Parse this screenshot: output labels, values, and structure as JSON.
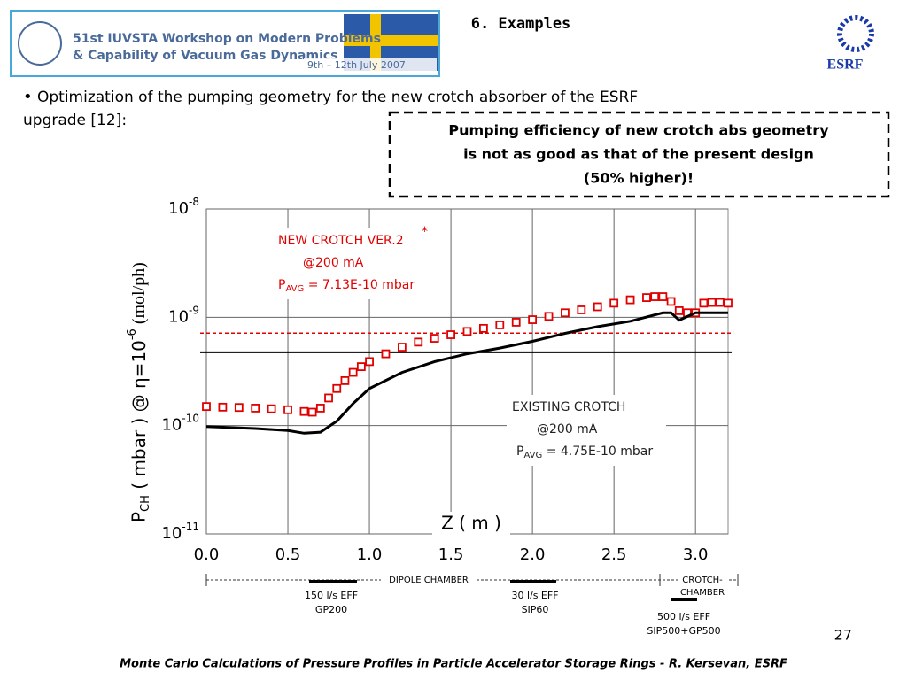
{
  "header": {
    "logo_line1": "51st IUVSTA Workshop on Modern Problems",
    "logo_line2": "& Capability of Vacuum Gas Dynamics",
    "logo_date": "9th – 12th  July 2007",
    "title": "6. Examples",
    "esrf": "ESRF"
  },
  "bullet": {
    "line1": "Optimization of the pumping geometry for the new crotch absorber of the ESRF",
    "line2": "upgrade [12]:"
  },
  "callout": {
    "lines": [
      "Pumping efficiency of new crotch abs geometry",
      "is not as good as that of the present design",
      "(50% higher)!"
    ]
  },
  "chart_data": {
    "type": "line",
    "log_y": true,
    "grid": true,
    "xlabel": "Z ( m )",
    "ylabel": {
      "p": "P",
      "sub": "CH",
      "mid": " ( mbar ) @ η=10",
      "sup": "-6",
      "rest": " (mol/ph)"
    },
    "xlim": [
      0,
      3.2
    ],
    "xticks": [
      {
        "value": 0,
        "label": "0.0"
      },
      0.5,
      {
        "value": 1,
        "label": "1.0"
      },
      1.5,
      {
        "value": 2,
        "label": "2.0"
      },
      2.5,
      {
        "value": 3,
        "label": "3.0"
      }
    ],
    "ylim": [
      1e-11,
      1e-08
    ],
    "yticks": [
      {
        "value": 1e-11,
        "label": "10-11"
      },
      {
        "value": 1e-10,
        "label": "10-10"
      },
      {
        "value": 1e-09,
        "label": "10-9"
      },
      {
        "value": 1e-08,
        "label": "10-8"
      }
    ],
    "series": [
      {
        "name": "NEW CROTCH VER.2",
        "color": "#e00000",
        "marker": "square",
        "x": [
          0,
          0.1,
          0.2,
          0.3,
          0.4,
          0.5,
          0.6,
          0.65,
          0.7,
          0.75,
          0.8,
          0.85,
          0.9,
          0.95,
          1.0,
          1.1,
          1.2,
          1.3,
          1.4,
          1.5,
          1.6,
          1.7,
          1.8,
          1.9,
          2.0,
          2.1,
          2.2,
          2.3,
          2.4,
          2.5,
          2.6,
          2.7,
          2.75,
          2.8,
          2.85,
          2.9,
          2.95,
          3.0,
          3.05,
          3.1,
          3.15,
          3.2
        ],
        "values": [
          1.5e-10,
          1.48e-10,
          1.47e-10,
          1.45e-10,
          1.43e-10,
          1.4e-10,
          1.35e-10,
          1.33e-10,
          1.45e-10,
          1.8e-10,
          2.2e-10,
          2.6e-10,
          3.1e-10,
          3.5e-10,
          3.9e-10,
          4.6e-10,
          5.3e-10,
          5.9e-10,
          6.4e-10,
          6.9e-10,
          7.4e-10,
          7.9e-10,
          8.5e-10,
          9e-10,
          9.5e-10,
          1.02e-09,
          1.1e-09,
          1.17e-09,
          1.25e-09,
          1.35e-09,
          1.45e-09,
          1.52e-09,
          1.55e-09,
          1.55e-09,
          1.4e-09,
          1.15e-09,
          1.1e-09,
          1.1e-09,
          1.35e-09,
          1.37e-09,
          1.37e-09,
          1.35e-09
        ]
      },
      {
        "name": "EXISTING CROTCH",
        "color": "#000000",
        "marker": "none",
        "x": [
          0,
          0.3,
          0.5,
          0.6,
          0.7,
          0.8,
          0.9,
          1.0,
          1.2,
          1.4,
          1.6,
          1.8,
          2.0,
          2.2,
          2.4,
          2.6,
          2.8,
          2.85,
          2.9,
          3.0,
          3.2
        ],
        "values": [
          9.8e-11,
          9.4e-11,
          9e-11,
          8.5e-11,
          8.7e-11,
          1.1e-10,
          1.6e-10,
          2.2e-10,
          3.1e-10,
          3.9e-10,
          4.6e-10,
          5.2e-10,
          6e-10,
          7.1e-10,
          8.2e-10,
          9.2e-10,
          1.1e-09,
          1.1e-09,
          9.4e-10,
          1.1e-09,
          1.1e-09
        ]
      }
    ],
    "hlines": [
      {
        "value": 7.13e-10,
        "color": "#e00000",
        "dash": true
      },
      {
        "value": 4.75e-10,
        "color": "#000000",
        "dash": false
      }
    ],
    "annotations": [
      {
        "title": "NEW CROTCH VER.2",
        "star": "*",
        "current": "@200 mA",
        "p": "P",
        "sub": "AVG",
        "rest": " = 7.13E-10 mbar",
        "color": "#e00000"
      },
      {
        "title": "EXISTING CROTCH",
        "current": "@200 mA",
        "p": "P",
        "sub": "AVG",
        "rest": " = 4.75E-10 mbar",
        "color": "#222"
      }
    ]
  },
  "chambers": {
    "dipole": "DIPOLE CHAMBER",
    "crotch1": "CROTCH-",
    "crotch2": "CHAMBER",
    "pumps": [
      {
        "eff": "150 l/s EFF",
        "model": "GP200"
      },
      {
        "eff": "30 l/s EFF",
        "model": "SIP60"
      },
      {
        "eff": "500 l/s EFF",
        "model": "SIP500+GP500"
      }
    ]
  },
  "page_number": "27",
  "footer": "Monte Carlo Calculations of Pressure Profiles in Particle Accelerator Storage Rings - R. Kersevan, ESRF"
}
